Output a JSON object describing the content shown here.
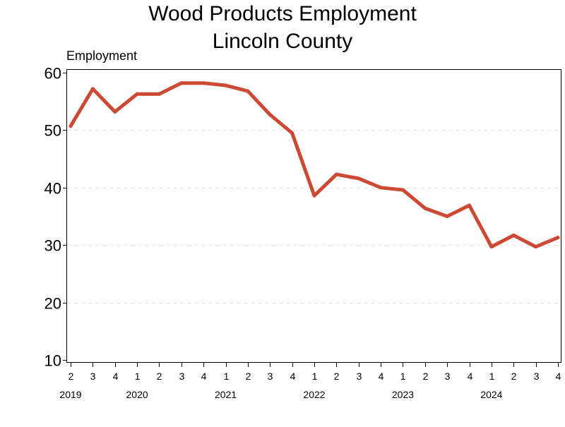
{
  "chart_data": {
    "type": "line",
    "title_line1": "Wood Products Employment",
    "title_line2": "Lincoln County",
    "ylabel": "Employment",
    "ylim": [
      9.5,
      60.5
    ],
    "yticks": [
      10,
      20,
      30,
      40,
      50,
      60
    ],
    "grid": {
      "y": true,
      "style": "dashed",
      "lines": [
        20,
        30,
        40,
        50
      ]
    },
    "x_quarters": [
      "2",
      "3",
      "4",
      "1",
      "2",
      "3",
      "4",
      "1",
      "2",
      "3",
      "4",
      "1",
      "2",
      "3",
      "4",
      "1",
      "2",
      "3",
      "4",
      "1",
      "2",
      "3",
      "4"
    ],
    "x_years": [
      {
        "label": "2019",
        "at_index": 0
      },
      {
        "label": "2020",
        "at_index": 3
      },
      {
        "label": "2021",
        "at_index": 7
      },
      {
        "label": "2022",
        "at_index": 11
      },
      {
        "label": "2023",
        "at_index": 15
      },
      {
        "label": "2024",
        "at_index": 19
      }
    ],
    "series": [
      {
        "color": "#cc4a33",
        "values": [
          50.7,
          57.2,
          53.2,
          56.3,
          56.3,
          58.2,
          58.2,
          57.8,
          56.8,
          52.7,
          49.5,
          38.6,
          42.3,
          41.6,
          40.0,
          39.6,
          36.4,
          35.0,
          36.9,
          29.7,
          31.7,
          29.7,
          31.3
        ]
      }
    ]
  }
}
